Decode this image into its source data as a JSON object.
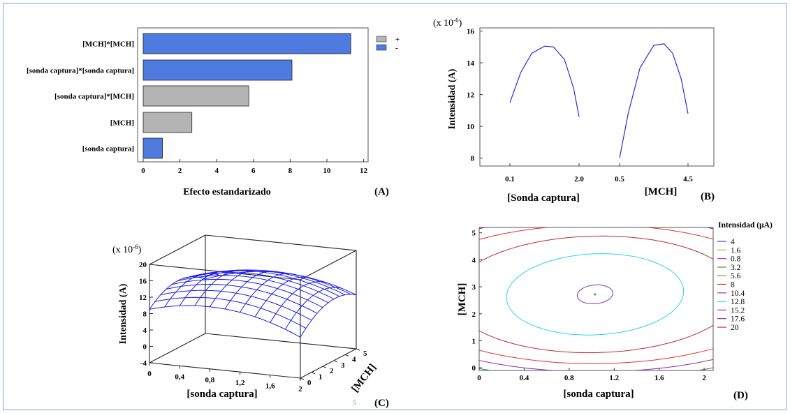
{
  "colors": {
    "bar_positive": "#b4b4b4",
    "bar_negative": "#4f7be0",
    "curve": "#2b2bd6",
    "mesh": "#1d1de6",
    "frame": "#7ea6d6"
  },
  "chart_data": [
    {
      "panel": "A",
      "type": "bar",
      "orientation": "horizontal",
      "tag": "(A)",
      "xlabel": "Efecto estandarizado",
      "xlim": [
        0,
        12.5
      ],
      "xticks": [
        "0",
        "2",
        "4",
        "6",
        "8",
        "10",
        "12"
      ],
      "categories": [
        "[MCH]*[MCH]",
        "[sonda captura]*[sonda captura]",
        "[sonda captura]*[MCH]",
        "[MCH]",
        "[sonda captura]"
      ],
      "values": [
        11.3,
        8.1,
        5.75,
        2.65,
        1.05
      ],
      "signs": [
        "-",
        "-",
        "+",
        "+",
        "-"
      ],
      "legend": [
        {
          "label": "+",
          "color": "#b4b4b4"
        },
        {
          "label": "-",
          "color": "#4f7be0"
        }
      ],
      "legend_position": "top-right"
    },
    {
      "panel": "B",
      "type": "line",
      "tag": "(B)",
      "multiplier": "(x 10-6)",
      "multiplier_base": "(x 10",
      "multiplier_exp": "-6",
      "multiplier_close": ")",
      "ylabel": "Intensidad (A)",
      "ylim": [
        7.5,
        16.2
      ],
      "yticks": [
        "8",
        "10",
        "12",
        "14",
        "16"
      ],
      "factors": [
        {
          "label": "[Sonda captura]",
          "xticks": [
            "0.1",
            "2.0"
          ],
          "x": [
            0.1,
            0.4,
            0.7,
            1.05,
            1.3,
            1.6,
            1.85,
            2.0
          ],
          "y": [
            11.5,
            13.4,
            14.6,
            15.05,
            15.0,
            14.2,
            12.4,
            10.6
          ]
        },
        {
          "label": "[MCH]",
          "xticks": [
            "0.5",
            "4.5"
          ],
          "x": [
            0.5,
            1.0,
            1.7,
            2.5,
            3.1,
            3.6,
            4.1,
            4.5
          ],
          "y": [
            8.0,
            10.8,
            13.7,
            15.1,
            15.2,
            14.6,
            13.0,
            10.8
          ]
        }
      ]
    },
    {
      "panel": "C",
      "type": "surface",
      "tag": "(C)",
      "multiplier": "(x 10-6)",
      "multiplier_base": "(x 10",
      "multiplier_exp": "-6",
      "multiplier_close": ")",
      "xlabel": "[sonda captura]",
      "ylabel": "[MCH]",
      "zlabel": "Intensidad (A)",
      "xticks": [
        "0",
        "0,4",
        "0,8",
        "1,2",
        "1,6",
        "2"
      ],
      "yticks": [
        "0",
        "1",
        "2",
        "3",
        "4",
        "5"
      ],
      "zticks": [
        "-4",
        "0",
        "4",
        "8",
        "12",
        "16",
        "20"
      ],
      "xlim": [
        0,
        2
      ],
      "ylim": [
        0,
        5
      ],
      "zlim": [
        -4,
        20
      ],
      "z_peak": 15.2,
      "stray_label": "5"
    },
    {
      "panel": "D",
      "type": "contour",
      "tag": "(D)",
      "xlabel": "[sonda captura]",
      "ylabel": "[MCH]",
      "xticks": [
        "0",
        "0.4",
        "0.8",
        "1.2",
        "1.6",
        "2"
      ],
      "yticks": [
        "0",
        "1",
        "2",
        "3",
        "4",
        "5"
      ],
      "xlim": [
        0,
        2.08
      ],
      "ylim": [
        -0.1,
        5.2
      ],
      "legend_title": "Intensidad (μA)",
      "levels": [
        {
          "label": "4",
          "color": "#3b3bd0"
        },
        {
          "label": "1.6",
          "color": "#e6a33a"
        },
        {
          "label": "0.8",
          "color": "#e030e0"
        },
        {
          "label": "3.2",
          "color": "#3a8a3a"
        },
        {
          "label": "5.6",
          "color": "#8a8a3a"
        },
        {
          "label": "8",
          "color": "#e03030"
        },
        {
          "label": "10.4",
          "color": "#8a3ab0"
        },
        {
          "label": "12.8",
          "color": "#2ad4e0"
        },
        {
          "label": "15.2",
          "color": "#7a3ab0"
        },
        {
          "label": "17.6",
          "color": "#8a2ab0"
        },
        {
          "label": "20",
          "color": "#c02a2a"
        }
      ],
      "center": [
        1.03,
        2.72
      ]
    }
  ]
}
